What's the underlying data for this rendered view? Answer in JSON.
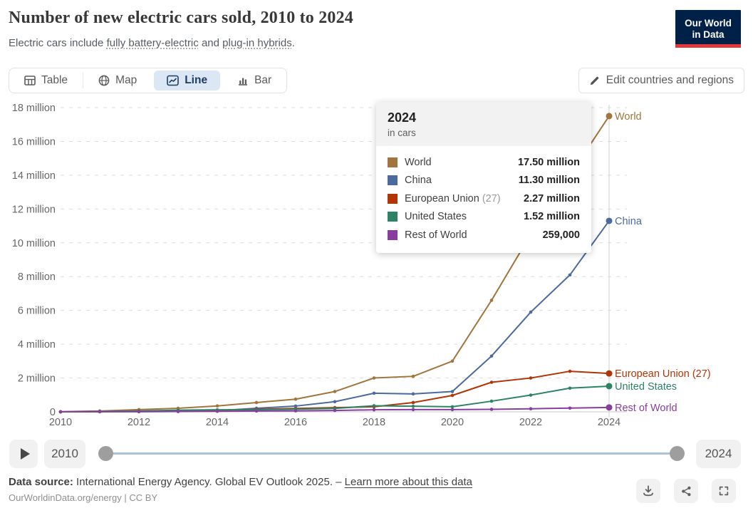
{
  "header": {
    "title": "Number of new electric cars sold, 2010 to 2024",
    "subtitle_prefix": "Electric cars include ",
    "subtitle_link1": "fully battery-electric",
    "subtitle_and": " and ",
    "subtitle_link2": "plug-in hybrids",
    "subtitle_period": ".",
    "logo": {
      "line1": "Our World",
      "line2": "in Data",
      "bg": "#002147",
      "stripe": "#e2373b"
    }
  },
  "toolbar": {
    "tabs": [
      {
        "label": "Table",
        "icon": "table-icon",
        "active": false
      },
      {
        "label": "Map",
        "icon": "globe-icon",
        "active": false
      },
      {
        "label": "Line",
        "icon": "line-chart-icon",
        "active": true
      },
      {
        "label": "Bar",
        "icon": "bar-chart-icon",
        "active": false
      }
    ],
    "edit_button": {
      "label": "Edit countries and regions",
      "icon": "pencil-icon"
    }
  },
  "chart_data": {
    "type": "line",
    "title": "Number of new electric cars sold, 2010 to 2024",
    "unit": "cars",
    "x": [
      2010,
      2011,
      2012,
      2013,
      2014,
      2015,
      2016,
      2017,
      2018,
      2019,
      2020,
      2021,
      2022,
      2023,
      2024
    ],
    "xticks": [
      2010,
      2012,
      2014,
      2016,
      2018,
      2020,
      2022,
      2024
    ],
    "yticks": [
      {
        "value": 0,
        "label": "0"
      },
      {
        "value": 2,
        "label": "2 million"
      },
      {
        "value": 4,
        "label": "4 million"
      },
      {
        "value": 6,
        "label": "6 million"
      },
      {
        "value": 8,
        "label": "8 million"
      },
      {
        "value": 10,
        "label": "10 million"
      },
      {
        "value": 12,
        "label": "12 million"
      },
      {
        "value": 14,
        "label": "14 million"
      },
      {
        "value": 16,
        "label": "16 million"
      },
      {
        "value": 18,
        "label": "18 million"
      }
    ],
    "ylim_millions": [
      0,
      18
    ],
    "grid": "dashed-horizontal",
    "legend_position": "end-of-line-labels",
    "hover_year": 2024,
    "series": [
      {
        "name": "World",
        "color": "#a1753d",
        "values_millions": [
          0.01,
          0.05,
          0.13,
          0.21,
          0.35,
          0.55,
          0.75,
          1.2,
          2.0,
          2.1,
          3.0,
          6.6,
          10.5,
          14.0,
          17.5
        ],
        "value_2024_label": "17.50 million"
      },
      {
        "name": "China",
        "color": "#4c6a9c",
        "values_millions": [
          0.0,
          0.01,
          0.01,
          0.02,
          0.07,
          0.21,
          0.34,
          0.6,
          1.1,
          1.06,
          1.2,
          3.3,
          5.9,
          8.1,
          11.3
        ],
        "value_2024_label": "11.30 million"
      },
      {
        "name": "European Union (27)",
        "color": "#b13507",
        "values_millions": [
          0.0,
          0.01,
          0.03,
          0.07,
          0.1,
          0.15,
          0.2,
          0.25,
          0.3,
          0.55,
          0.97,
          1.75,
          2.0,
          2.4,
          2.27
        ],
        "value_2024_label": "2.27 million"
      },
      {
        "name": "United States",
        "color": "#2c8465",
        "values_millions": [
          0.0,
          0.02,
          0.05,
          0.1,
          0.12,
          0.12,
          0.16,
          0.2,
          0.36,
          0.33,
          0.3,
          0.63,
          0.99,
          1.4,
          1.52
        ],
        "value_2024_label": "1.52 million"
      },
      {
        "name": "Rest of World",
        "color": "#883e9e",
        "values_millions": [
          0.0,
          0.005,
          0.01,
          0.02,
          0.03,
          0.05,
          0.06,
          0.08,
          0.12,
          0.13,
          0.13,
          0.15,
          0.18,
          0.22,
          0.259
        ],
        "value_2024_label": "259,000"
      }
    ]
  },
  "tooltip": {
    "title": "2024",
    "unit_line": "in cars",
    "rows": [
      {
        "name": "World",
        "suffix": "",
        "value": "17.50 million",
        "color": "#a1753d"
      },
      {
        "name": "China",
        "suffix": "",
        "value": "11.30 million",
        "color": "#4c6a9c"
      },
      {
        "name": "European Union",
        "suffix": " (27)",
        "value": "2.27 million",
        "color": "#b13507"
      },
      {
        "name": "United States",
        "suffix": "",
        "value": "1.52 million",
        "color": "#2c8465"
      },
      {
        "name": "Rest of World",
        "suffix": "",
        "value": "259,000",
        "color": "#883e9e"
      }
    ]
  },
  "timeline": {
    "play_icon": "play-icon",
    "start_year": "2010",
    "end_year": "2024"
  },
  "footer": {
    "source_label": "Data source:",
    "source_text": " International Energy Agency. Global EV Outlook 2025. – ",
    "source_link": "Learn more about this data",
    "license_line": "OurWorldinData.org/energy | CC BY",
    "actions": [
      {
        "icon": "download-icon"
      },
      {
        "icon": "share-icon"
      },
      {
        "icon": "fullscreen-icon"
      }
    ]
  }
}
